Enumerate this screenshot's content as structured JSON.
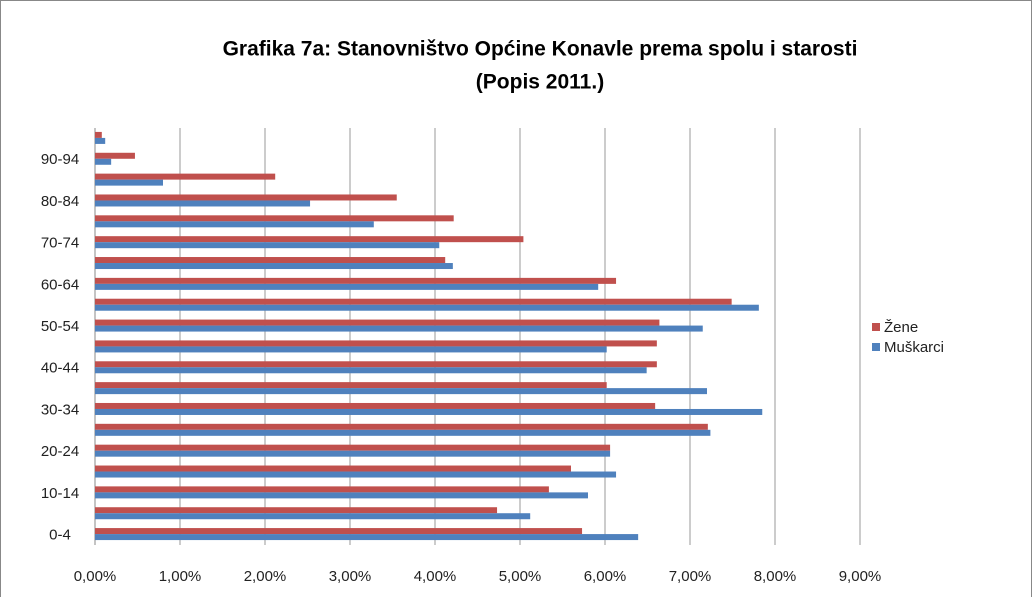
{
  "chart_data": {
    "type": "barh",
    "title": [
      "Grafika 7a: Stanovništvo Općine Konavle prema spolu i starosti",
      "(Popis 2011.)"
    ],
    "categories": [
      "0-4",
      null,
      "10-14",
      null,
      "20-24",
      null,
      "30-34",
      null,
      "40-44",
      null,
      "50-54",
      null,
      "60-64",
      null,
      "70-74",
      null,
      "80-84",
      null,
      "90-94",
      null
    ],
    "series": [
      {
        "name": "Žene",
        "color": "#c0504d",
        "values": [
          5.73,
          4.73,
          5.34,
          5.6,
          6.06,
          7.21,
          6.59,
          6.02,
          6.61,
          6.61,
          6.64,
          7.49,
          6.13,
          4.12,
          5.04,
          4.22,
          3.55,
          2.12,
          0.47,
          0.08
        ]
      },
      {
        "name": "Muškarci",
        "color": "#4f81bd",
        "values": [
          6.39,
          5.12,
          5.8,
          6.13,
          6.06,
          7.24,
          7.85,
          7.2,
          6.49,
          6.02,
          7.15,
          7.81,
          5.92,
          4.21,
          4.05,
          3.28,
          2.53,
          0.8,
          0.19,
          0.12
        ]
      }
    ],
    "xlim": [
      0,
      9
    ],
    "xticks": [
      {
        "value": 0,
        "label": "0,00%"
      },
      {
        "value": 1,
        "label": "1,00%"
      },
      {
        "value": 2,
        "label": "2,00%"
      },
      {
        "value": 3,
        "label": "3,00%"
      },
      {
        "value": 4,
        "label": "4,00%"
      },
      {
        "value": 5,
        "label": "5,00%"
      },
      {
        "value": 6,
        "label": "6,00%"
      },
      {
        "value": 7,
        "label": "7,00%"
      },
      {
        "value": 8,
        "label": "8,00%"
      },
      {
        "value": 9,
        "label": "9,00%"
      }
    ],
    "grid": true,
    "legend": "right"
  }
}
